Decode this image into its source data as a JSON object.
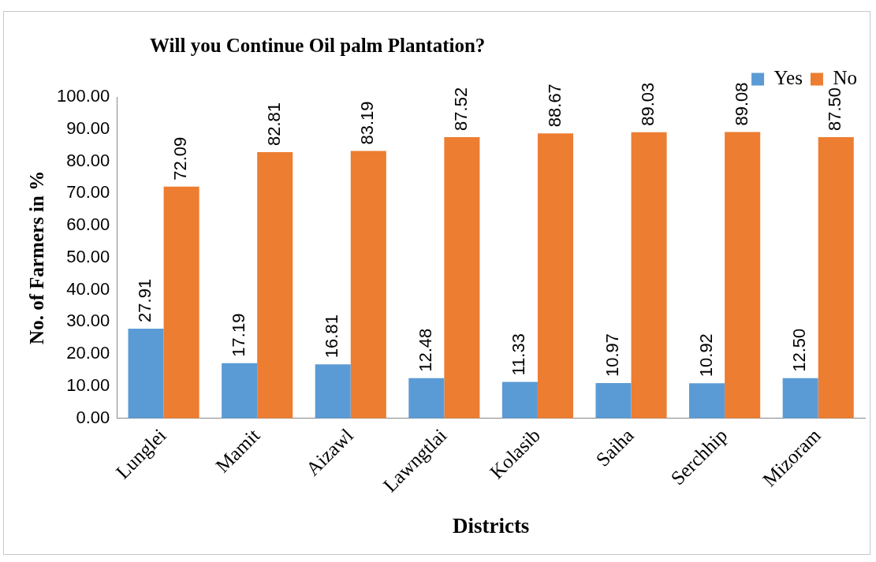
{
  "chart_data": {
    "type": "bar",
    "title": "Will you Continue Oil palm Plantation?",
    "xlabel": "Districts",
    "ylabel": "No. of Farmers in %",
    "categories": [
      "Lunglei",
      "Mamit",
      "Aizawl",
      "Lawngtlai",
      "Kolasib",
      "Saiha",
      "Serchhip",
      "Mizoram"
    ],
    "series": [
      {
        "name": "Yes",
        "color": "#5b9bd5",
        "values": [
          27.91,
          17.19,
          16.81,
          12.48,
          11.33,
          10.97,
          10.92,
          12.5
        ],
        "value_labels": [
          "27.91",
          "17.19",
          "16.81",
          "12.48",
          "11.33",
          "10.97",
          "10.92",
          "12.50"
        ]
      },
      {
        "name": "No",
        "color": "#ed7d31",
        "values": [
          72.09,
          82.81,
          83.19,
          87.52,
          88.67,
          89.03,
          89.08,
          87.5
        ],
        "value_labels": [
          "72.09",
          "82.81",
          "83.19",
          "87.52",
          "88.67",
          "89.03",
          "89.08",
          "87.50"
        ]
      }
    ],
    "ylim": [
      0,
      100
    ],
    "yticks": [
      {
        "value": 0,
        "label": "0.00"
      },
      {
        "value": 10,
        "label": "10.00"
      },
      {
        "value": 20,
        "label": "20.00"
      },
      {
        "value": 30,
        "label": "30.00"
      },
      {
        "value": 40,
        "label": "40.00"
      },
      {
        "value": 50,
        "label": "50.00"
      },
      {
        "value": 60,
        "label": "60.00"
      },
      {
        "value": 70,
        "label": "70.00"
      },
      {
        "value": 80,
        "label": "80.00"
      },
      {
        "value": 90,
        "label": "90.00"
      },
      {
        "value": 100,
        "label": "100.00"
      }
    ],
    "grid": false,
    "legend": "top right"
  }
}
